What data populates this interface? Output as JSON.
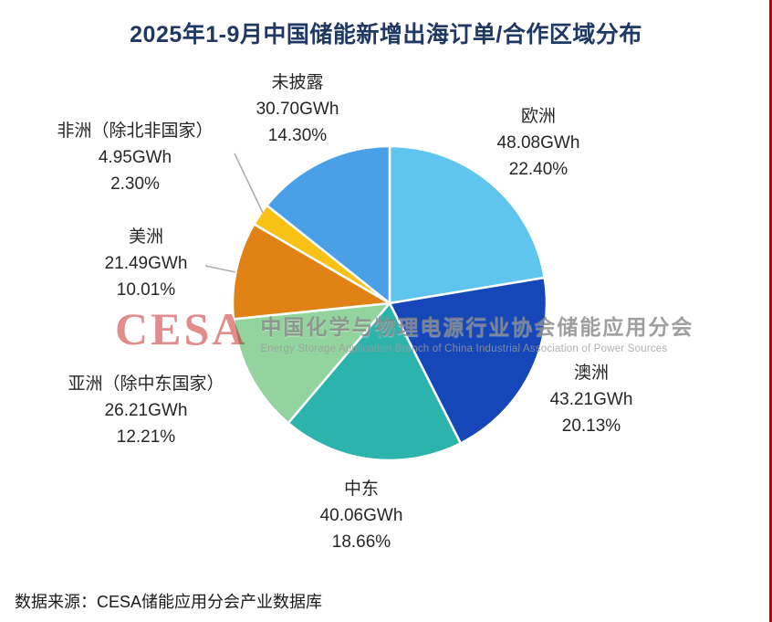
{
  "title": "2025年1-9月中国储能新增出海订单/合作区域分布",
  "source": "数据来源：CESA储能应用分会产业数据库",
  "watermark": {
    "logo": "CESA",
    "org_cn": "中国化学与物理电源行业协会储能应用分会",
    "org_en": "Energy Storage Application Branch of China Industrial Association of Power Sources",
    "logo_color": "#c00000"
  },
  "chart_data": {
    "type": "pie",
    "title": "2025年1-9月中国储能新增出海订单/合作区域分布",
    "unit": "GWh",
    "start_angle_deg": 0,
    "direction": "clockwise",
    "legend_position": "labels-around-pie",
    "slices": [
      {
        "label": "欧洲",
        "value_gwh": 48.08,
        "percent": 22.4,
        "value_label": "48.08GWh",
        "percent_label": "22.40%",
        "color": "#5fc4ee"
      },
      {
        "label": "澳洲",
        "value_gwh": 43.21,
        "percent": 20.13,
        "value_label": "43.21GWh",
        "percent_label": "20.13%",
        "color": "#1547b8"
      },
      {
        "label": "中东",
        "value_gwh": 40.06,
        "percent": 18.66,
        "value_label": "40.06GWh",
        "percent_label": "18.66%",
        "color": "#2cb3ac"
      },
      {
        "label": "亚洲（除中东国家）",
        "value_gwh": 26.21,
        "percent": 12.21,
        "value_label": "26.21GWh",
        "percent_label": "12.21%",
        "color": "#93d49e"
      },
      {
        "label": "美洲",
        "value_gwh": 21.49,
        "percent": 10.01,
        "value_label": "21.49GWh",
        "percent_label": "10.01%",
        "color": "#e08214"
      },
      {
        "label": "非洲（除北非国家）",
        "value_gwh": 4.95,
        "percent": 2.3,
        "value_label": "4.95GWh",
        "percent_label": "2.30%",
        "color": "#f7c213"
      },
      {
        "label": "未披露",
        "value_gwh": 30.7,
        "percent": 14.3,
        "value_label": "30.70GWh",
        "percent_label": "14.30%",
        "color": "#4aa0e6"
      }
    ]
  }
}
